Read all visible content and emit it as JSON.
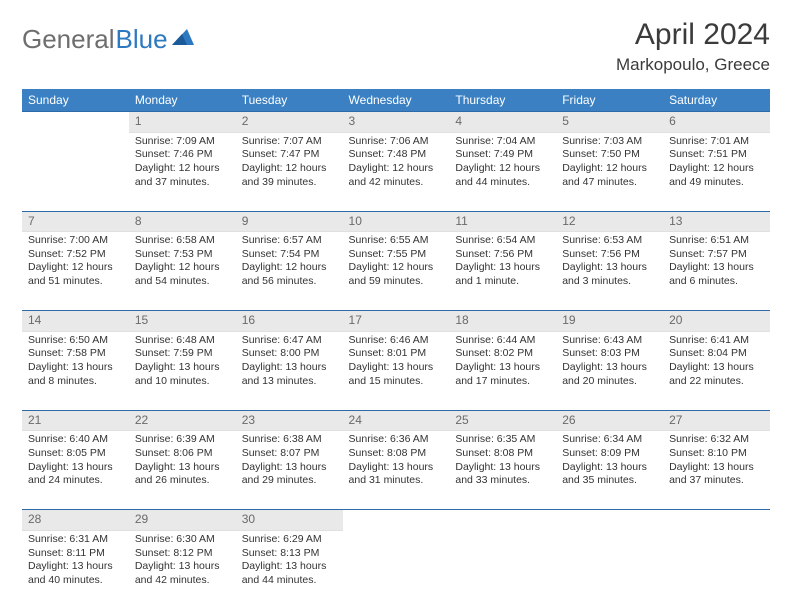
{
  "logo": {
    "word1": "General",
    "word2": "Blue"
  },
  "title": "April 2024",
  "location": "Markopoulo, Greece",
  "colors": {
    "header_bg": "#3a80c3",
    "header_text": "#ffffff",
    "row_border": "#2f6aa8",
    "daynum_bg": "#e9e9e9",
    "daynum_text": "#6a6a6a",
    "body_text": "#333333",
    "logo_gray": "#6e6e6e",
    "logo_blue": "#2d79c0"
  },
  "typography": {
    "title_fontsize": 30,
    "location_fontsize": 17,
    "dayhead_fontsize": 12,
    "cell_fontsize": 10.5,
    "logo_fontsize": 26
  },
  "weekdays": [
    "Sunday",
    "Monday",
    "Tuesday",
    "Wednesday",
    "Thursday",
    "Friday",
    "Saturday"
  ],
  "weeks": [
    [
      null,
      {
        "n": "1",
        "sun": "Sunrise: 7:09 AM",
        "set": "Sunset: 7:46 PM",
        "day": "Daylight: 12 hours and 37 minutes."
      },
      {
        "n": "2",
        "sun": "Sunrise: 7:07 AM",
        "set": "Sunset: 7:47 PM",
        "day": "Daylight: 12 hours and 39 minutes."
      },
      {
        "n": "3",
        "sun": "Sunrise: 7:06 AM",
        "set": "Sunset: 7:48 PM",
        "day": "Daylight: 12 hours and 42 minutes."
      },
      {
        "n": "4",
        "sun": "Sunrise: 7:04 AM",
        "set": "Sunset: 7:49 PM",
        "day": "Daylight: 12 hours and 44 minutes."
      },
      {
        "n": "5",
        "sun": "Sunrise: 7:03 AM",
        "set": "Sunset: 7:50 PM",
        "day": "Daylight: 12 hours and 47 minutes."
      },
      {
        "n": "6",
        "sun": "Sunrise: 7:01 AM",
        "set": "Sunset: 7:51 PM",
        "day": "Daylight: 12 hours and 49 minutes."
      }
    ],
    [
      {
        "n": "7",
        "sun": "Sunrise: 7:00 AM",
        "set": "Sunset: 7:52 PM",
        "day": "Daylight: 12 hours and 51 minutes."
      },
      {
        "n": "8",
        "sun": "Sunrise: 6:58 AM",
        "set": "Sunset: 7:53 PM",
        "day": "Daylight: 12 hours and 54 minutes."
      },
      {
        "n": "9",
        "sun": "Sunrise: 6:57 AM",
        "set": "Sunset: 7:54 PM",
        "day": "Daylight: 12 hours and 56 minutes."
      },
      {
        "n": "10",
        "sun": "Sunrise: 6:55 AM",
        "set": "Sunset: 7:55 PM",
        "day": "Daylight: 12 hours and 59 minutes."
      },
      {
        "n": "11",
        "sun": "Sunrise: 6:54 AM",
        "set": "Sunset: 7:56 PM",
        "day": "Daylight: 13 hours and 1 minute."
      },
      {
        "n": "12",
        "sun": "Sunrise: 6:53 AM",
        "set": "Sunset: 7:56 PM",
        "day": "Daylight: 13 hours and 3 minutes."
      },
      {
        "n": "13",
        "sun": "Sunrise: 6:51 AM",
        "set": "Sunset: 7:57 PM",
        "day": "Daylight: 13 hours and 6 minutes."
      }
    ],
    [
      {
        "n": "14",
        "sun": "Sunrise: 6:50 AM",
        "set": "Sunset: 7:58 PM",
        "day": "Daylight: 13 hours and 8 minutes."
      },
      {
        "n": "15",
        "sun": "Sunrise: 6:48 AM",
        "set": "Sunset: 7:59 PM",
        "day": "Daylight: 13 hours and 10 minutes."
      },
      {
        "n": "16",
        "sun": "Sunrise: 6:47 AM",
        "set": "Sunset: 8:00 PM",
        "day": "Daylight: 13 hours and 13 minutes."
      },
      {
        "n": "17",
        "sun": "Sunrise: 6:46 AM",
        "set": "Sunset: 8:01 PM",
        "day": "Daylight: 13 hours and 15 minutes."
      },
      {
        "n": "18",
        "sun": "Sunrise: 6:44 AM",
        "set": "Sunset: 8:02 PM",
        "day": "Daylight: 13 hours and 17 minutes."
      },
      {
        "n": "19",
        "sun": "Sunrise: 6:43 AM",
        "set": "Sunset: 8:03 PM",
        "day": "Daylight: 13 hours and 20 minutes."
      },
      {
        "n": "20",
        "sun": "Sunrise: 6:41 AM",
        "set": "Sunset: 8:04 PM",
        "day": "Daylight: 13 hours and 22 minutes."
      }
    ],
    [
      {
        "n": "21",
        "sun": "Sunrise: 6:40 AM",
        "set": "Sunset: 8:05 PM",
        "day": "Daylight: 13 hours and 24 minutes."
      },
      {
        "n": "22",
        "sun": "Sunrise: 6:39 AM",
        "set": "Sunset: 8:06 PM",
        "day": "Daylight: 13 hours and 26 minutes."
      },
      {
        "n": "23",
        "sun": "Sunrise: 6:38 AM",
        "set": "Sunset: 8:07 PM",
        "day": "Daylight: 13 hours and 29 minutes."
      },
      {
        "n": "24",
        "sun": "Sunrise: 6:36 AM",
        "set": "Sunset: 8:08 PM",
        "day": "Daylight: 13 hours and 31 minutes."
      },
      {
        "n": "25",
        "sun": "Sunrise: 6:35 AM",
        "set": "Sunset: 8:08 PM",
        "day": "Daylight: 13 hours and 33 minutes."
      },
      {
        "n": "26",
        "sun": "Sunrise: 6:34 AM",
        "set": "Sunset: 8:09 PM",
        "day": "Daylight: 13 hours and 35 minutes."
      },
      {
        "n": "27",
        "sun": "Sunrise: 6:32 AM",
        "set": "Sunset: 8:10 PM",
        "day": "Daylight: 13 hours and 37 minutes."
      }
    ],
    [
      {
        "n": "28",
        "sun": "Sunrise: 6:31 AM",
        "set": "Sunset: 8:11 PM",
        "day": "Daylight: 13 hours and 40 minutes."
      },
      {
        "n": "29",
        "sun": "Sunrise: 6:30 AM",
        "set": "Sunset: 8:12 PM",
        "day": "Daylight: 13 hours and 42 minutes."
      },
      {
        "n": "30",
        "sun": "Sunrise: 6:29 AM",
        "set": "Sunset: 8:13 PM",
        "day": "Daylight: 13 hours and 44 minutes."
      },
      null,
      null,
      null,
      null
    ]
  ]
}
